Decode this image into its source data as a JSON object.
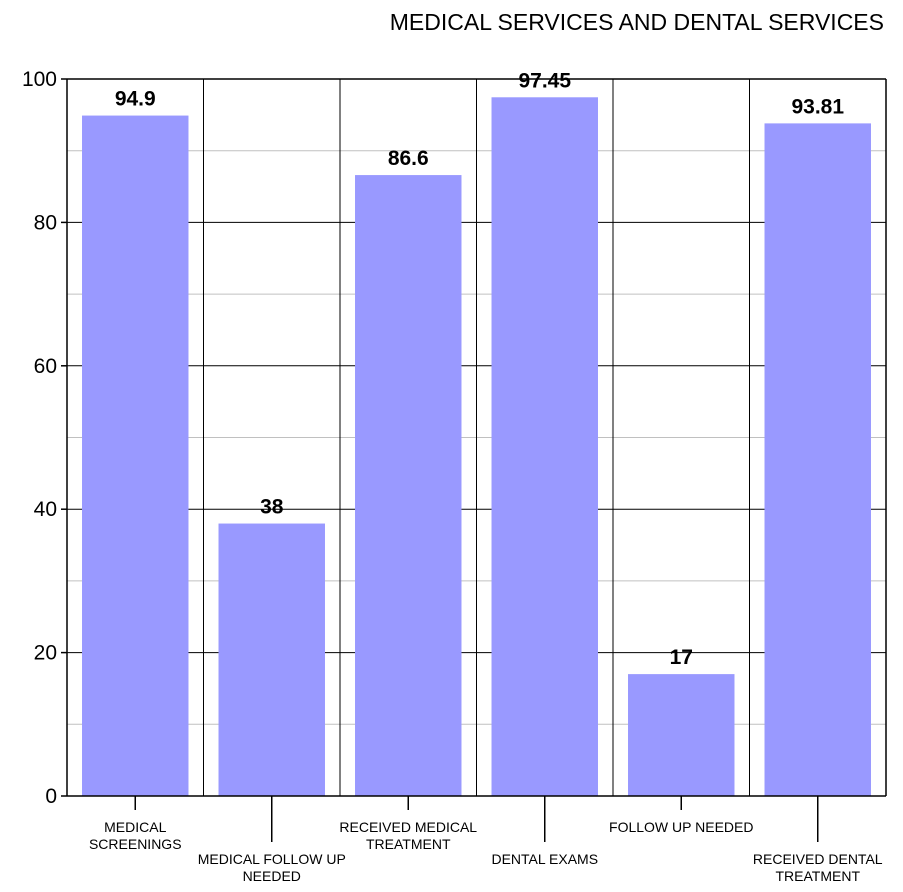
{
  "chart_data": {
    "type": "bar",
    "title": "MEDICAL SERVICES AND DENTAL SERVICES",
    "xlabel": "",
    "ylabel": "",
    "categories": [
      "MEDICAL SCREENINGS",
      "MEDICAL FOLLOW UP NEEDED",
      "RECEIVED MEDICAL TREATMENT",
      "DENTAL EXAMS",
      "FOLLOW UP NEEDED",
      "RECEIVED DENTAL TREATMENT"
    ],
    "category_label_lines": [
      [
        "MEDICAL",
        "SCREENINGS"
      ],
      [
        "MEDICAL FOLLOW UP",
        "NEEDED"
      ],
      [
        "RECEIVED MEDICAL",
        "TREATMENT"
      ],
      [
        "DENTAL EXAMS"
      ],
      [
        "FOLLOW UP NEEDED"
      ],
      [
        "RECEIVED DENTAL",
        "TREATMENT"
      ]
    ],
    "values": [
      94.9,
      38,
      86.6,
      97.45,
      17,
      93.81
    ],
    "data_labels": [
      "94.9",
      "38",
      "86.6",
      "97.45",
      "17",
      "93.81"
    ],
    "ylim": [
      0,
      100
    ],
    "yticks": [
      0,
      20,
      40,
      60,
      80,
      100
    ],
    "grid": true,
    "legend": "none",
    "bar_color": "#9999ff",
    "grid_major_color": "#000000",
    "grid_minor_color": "#c0c0c0"
  }
}
